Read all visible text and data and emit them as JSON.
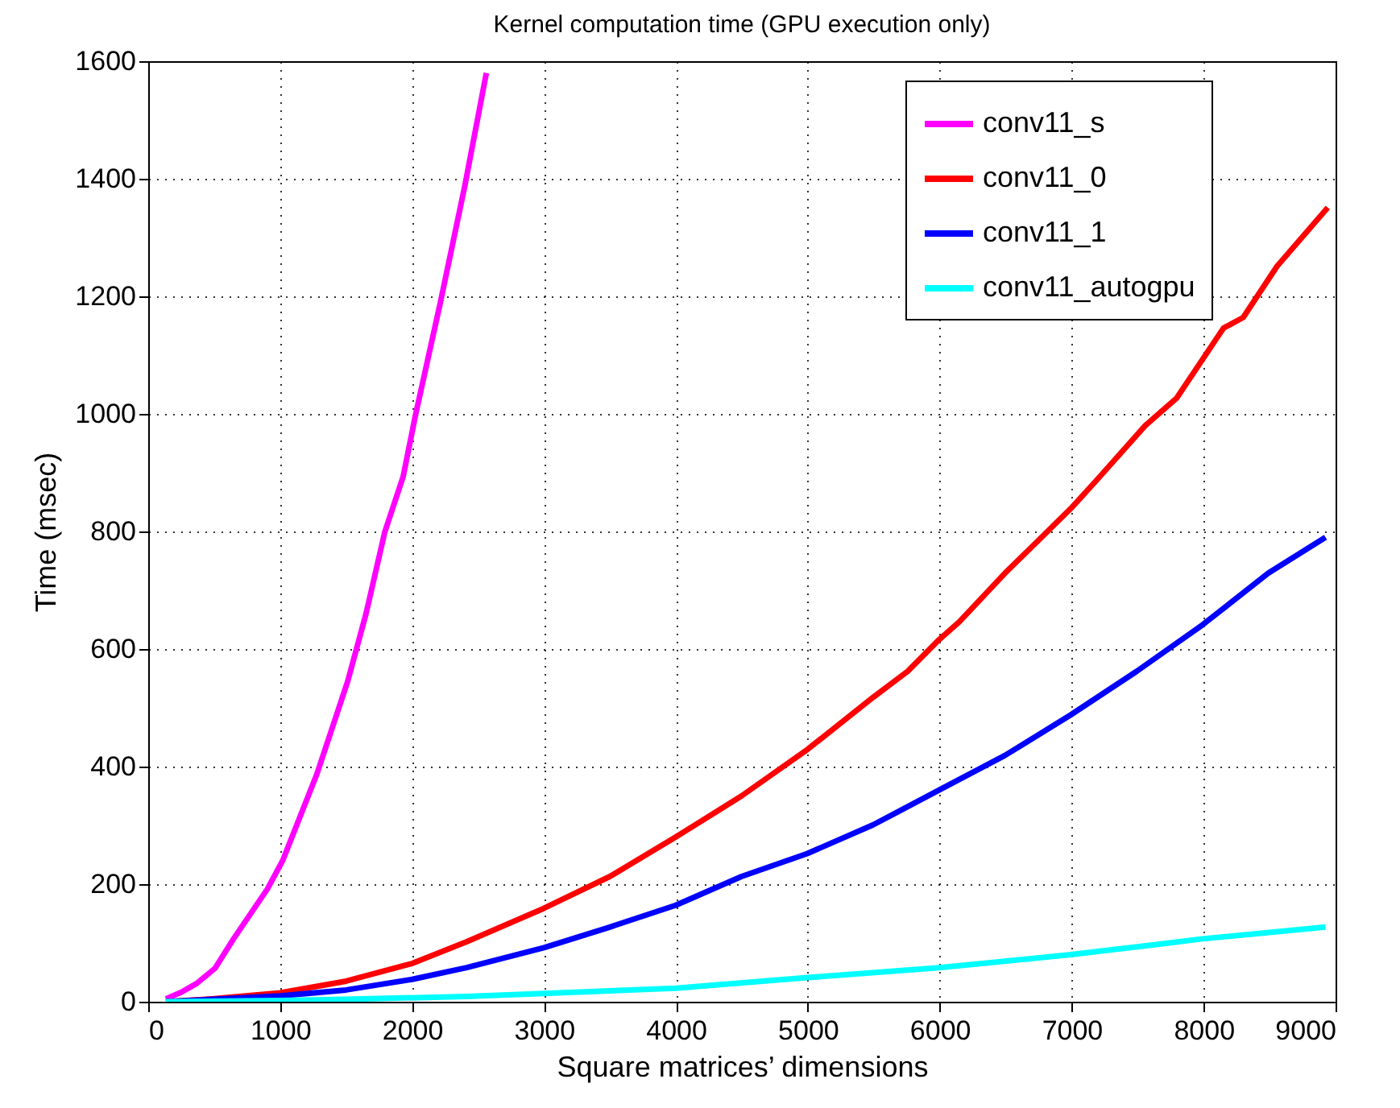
{
  "chart_data": {
    "type": "line",
    "title": "Kernel computation time (GPU execution only)",
    "xlabel": "Square matrices’ dimensions",
    "ylabel": "Time (msec)",
    "xlim": [
      0,
      9000
    ],
    "xticks": [
      0,
      1000,
      2000,
      3000,
      4000,
      5000,
      6000,
      7000,
      8000,
      9000
    ],
    "ylim": [
      0,
      1600
    ],
    "yticks": [
      0,
      200,
      400,
      600,
      800,
      1000,
      1200,
      1400,
      1600
    ],
    "grid": true,
    "legend": "top right",
    "line_style": "solid",
    "marker": "none",
    "series": [
      {
        "name": "conv11_s",
        "color": "#ff00ff",
        "x": [
          134,
          250,
          367,
          507,
          647,
          904,
          1021,
          1278,
          1512,
          1652,
          1792,
          1932,
          2026,
          2213,
          2400,
          2563
        ],
        "values": [
          5,
          16,
          31,
          57,
          107,
          192,
          241,
          387,
          545,
          661,
          798,
          893,
          998,
          1188,
          1388,
          1580
        ]
      },
      {
        "name": "conv11_0",
        "color": "#ff0000",
        "x": [
          134,
          500,
          1000,
          1500,
          2000,
          2414,
          3000,
          3499,
          3998,
          4497,
          4996,
          5496,
          5756,
          5995,
          6147,
          6494,
          6993,
          7188,
          7557,
          7796,
          8151,
          8300,
          8556,
          8941
        ],
        "values": [
          0,
          5,
          15,
          35,
          65,
          102,
          159,
          213,
          280,
          350,
          429,
          518,
          562,
          616,
          646,
          729,
          839,
          887,
          980,
          1027,
          1146,
          1164,
          1251,
          1351
        ]
      },
      {
        "name": "conv11_1",
        "color": "#0000ff",
        "x": [
          134,
          1000,
          1500,
          2000,
          2414,
          3000,
          3499,
          3998,
          4497,
          4996,
          5496,
          5995,
          6494,
          6993,
          7492,
          7991,
          8490,
          8924
        ],
        "values": [
          0,
          10,
          20,
          38,
          58,
          92,
          127,
          164,
          213,
          252,
          301,
          360,
          419,
          488,
          562,
          641,
          729,
          790
        ]
      },
      {
        "name": "conv11_autogpu",
        "color": "#00ffff",
        "x": [
          134,
          1000,
          1500,
          2414,
          3998,
          4996,
          5995,
          6993,
          7666,
          7991,
          8924
        ],
        "values": [
          0,
          2,
          4,
          9,
          23,
          41,
          58,
          80,
          98,
          107,
          127
        ]
      }
    ]
  }
}
